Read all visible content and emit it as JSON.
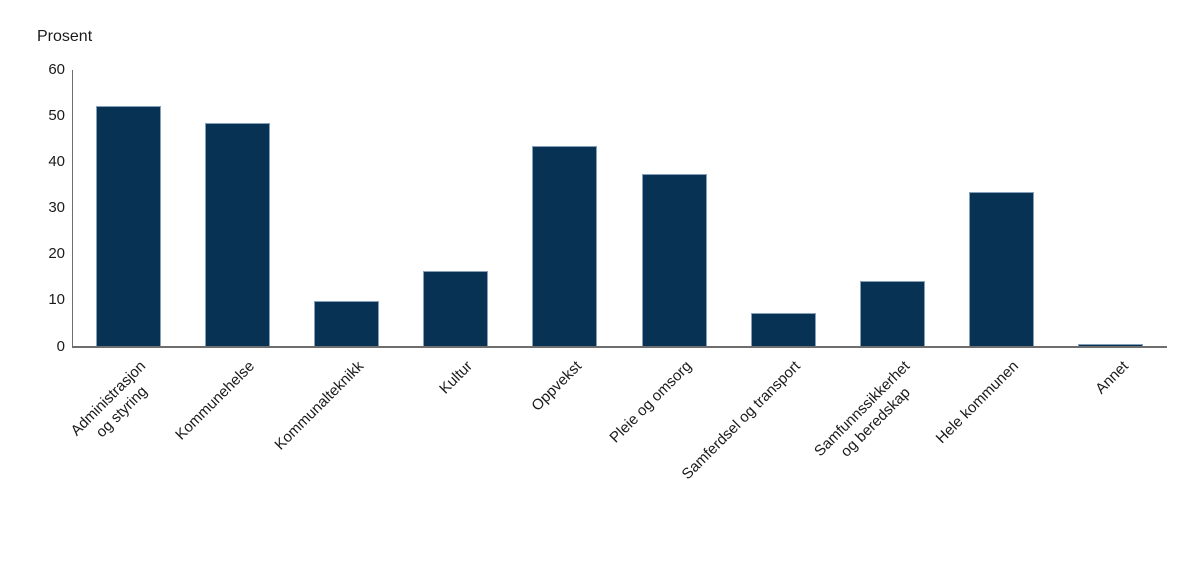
{
  "chart_data": {
    "type": "bar",
    "title": "",
    "ylabel": "Prosent",
    "categories": [
      "Administrasjon\nog styring",
      "Kommunehelse",
      "Kommunalteknikk",
      "Kultur",
      "Oppvekst",
      "Pleie og omsorg",
      "Samferdsel og transport",
      "Samfunnssikkerhet\nog beredskap",
      "Hele kommunen",
      "Annet"
    ],
    "values": [
      52.2,
      48.5,
      9.8,
      16.4,
      43.6,
      37.5,
      7.3,
      14.3,
      33.5,
      0.5
    ],
    "yticks": [
      0,
      10,
      20,
      30,
      40,
      50,
      60
    ],
    "ylim": [
      0,
      60
    ],
    "xlabel": "",
    "grid": "off",
    "legend": "none",
    "colors": {
      "bar_fill": "#073254",
      "bar_edge": "#86a0ba",
      "axis_line": "#6e6e6e",
      "text": "#1a1a1a"
    }
  }
}
